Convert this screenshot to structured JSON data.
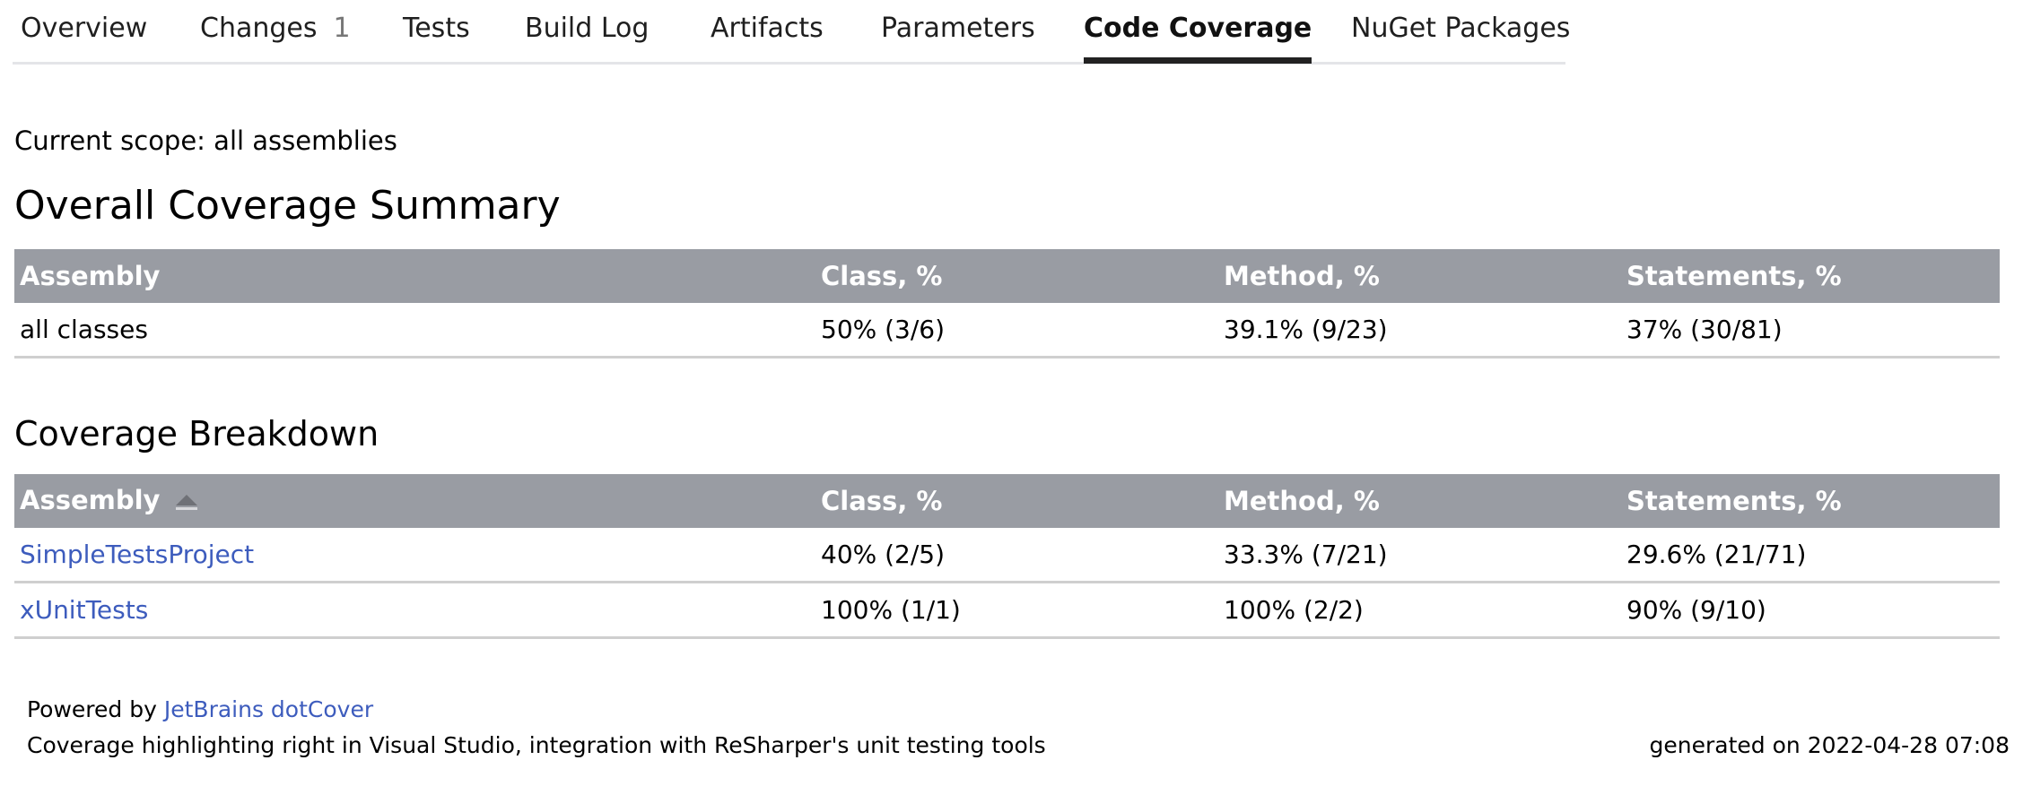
{
  "tabs": [
    {
      "label": "Overview"
    },
    {
      "label": "Changes",
      "count": "1"
    },
    {
      "label": "Tests"
    },
    {
      "label": "Build Log"
    },
    {
      "label": "Artifacts"
    },
    {
      "label": "Parameters"
    },
    {
      "label": "Code Coverage",
      "active": true
    },
    {
      "label": "NuGet Packages"
    }
  ],
  "scope": "Current scope: all assemblies",
  "summary": {
    "title": "Overall Coverage Summary",
    "headers": [
      "Assembly",
      "Class, %",
      "Method, %",
      "Statements, %"
    ],
    "rows": [
      [
        "all classes",
        "50% (3/6)",
        "39.1% (9/23)",
        "37% (30/81)"
      ]
    ]
  },
  "breakdown": {
    "title": "Coverage Breakdown",
    "headers": [
      "Assembly",
      "Class, %",
      "Method, %",
      "Statements, %"
    ],
    "sort": "ascending",
    "rows": [
      [
        "SimpleTestsProject",
        "40% (2/5)",
        "33.3% (7/21)",
        "29.6% (21/71)"
      ],
      [
        "xUnitTests",
        "100% (1/1)",
        "100% (2/2)",
        "90% (9/10)"
      ]
    ]
  },
  "footer": {
    "powered_by": "Powered by",
    "link": "JetBrains dotCover",
    "tagline": "Coverage highlighting right in Visual Studio, integration with ReSharper's unit testing tools",
    "generated": "generated on 2022-04-28 07:08"
  },
  "colors": {
    "header_bg": "#999ca3",
    "link": "#3d5cbd"
  }
}
